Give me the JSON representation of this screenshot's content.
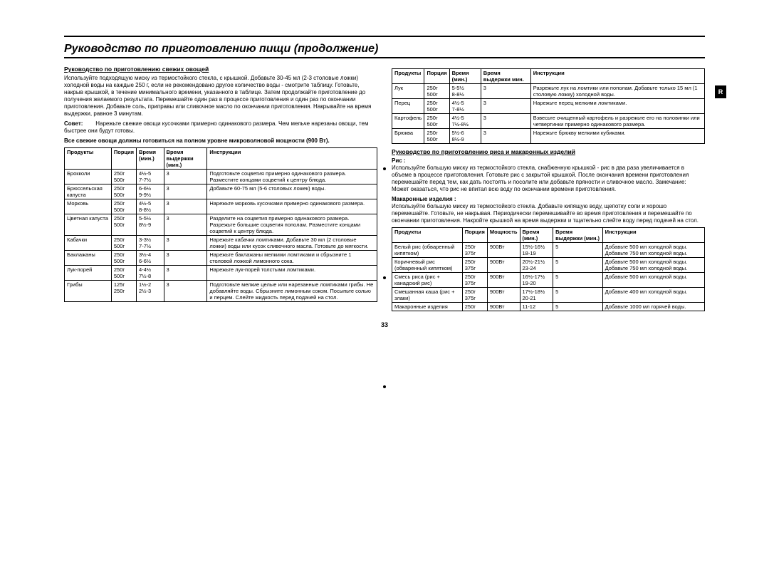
{
  "pageTitle": "Руководство по приготовлению пищи (продолжение)",
  "tabLabel": "R",
  "pageNumber": "33",
  "left": {
    "heading1": "Руководство по приготовлению свежих овощей",
    "para1": "Используйте подходящую миску из термостойкого стекла, с крышкой. Добавьте 30-45 мл (2-3 столовые ложки) холодной воды на каждые 250 г, если не рекомендовано другое количество воды - смотрите таблицу. Готовьте, накрыв крышкой, в течение минимального времени, указанного в таблице. Затем продолжайте приготовление до получения желаемого результата. Перемешайте один раз в процессе приготовления и один раз по окончании приготовления. Добавьте соль, приправы или сливочное масло по окончании приготовления. Накрывайте на время выдержки, равное 3 минутам.",
    "tipLabel": "Совет:",
    "tip": "Нарежьте свежие овощи кусочками примерно одинакового размера. Чем мельче нарезаны овощи, тем быстрее они будут готовы.",
    "boldNote": "Все свежие овощи должны готовиться на полном уровне микроволновой мощности (900 Вт).",
    "table1": {
      "headers": [
        "Продукты",
        "Порция",
        "Время (мин.)",
        "Время выдержки (мин.)",
        "Инструкции"
      ],
      "rows": [
        [
          "Брокколи",
          "250г\n500г",
          "4½-5\n7-7½",
          "3",
          "Подготовьте соцветия примерно одинакового размера. Разместите концами соцветий к центру блюда."
        ],
        [
          "Брюссельская капуста",
          "250г\n500г",
          "6-6½\n9-9½",
          "3",
          "Добавьте 60-75 мл (5-6 столовых ложек) воды."
        ],
        [
          "Морковь",
          "250г\n500г",
          "4½-5\n8-8½",
          "3",
          "Нарежьте морковь кусочками примерно одинакового размера."
        ],
        [
          "Цветная капуста",
          "250г\n500г",
          "5-5½\n8½-9",
          "3",
          "Разделите на соцветия примерно одинакового размера. Разрежьте большие соцветия пополам. Разместите концами соцветий к центру блюда."
        ],
        [
          "Кабачки",
          "250г\n500г",
          "3-3½\n7-7½",
          "3",
          "Нарежьте кабачки ломтиками. Добавьте 30 мл (2 столовые ложки) воды или кусок сливочного масла. Готовьте до мягкости."
        ],
        [
          "Баклажаны",
          "250г\n500г",
          "3½-4\n6-6½",
          "3",
          "Нарежьте баклажаны мелкими ломтиками и сбрызните 1 столовой ложкой лимонного сока."
        ],
        [
          "Лук-порей",
          "250г\n500г",
          "4-4½\n7½-8",
          "3",
          "Нарежьте лук-порей толстыми ломтиками."
        ],
        [
          "Грибы",
          "125г\n250г",
          "1½-2\n2½-3",
          "3",
          "Подготовьте мелкие целые или нарезанные ломтиками грибы. Не добавляйте воды. Сбрызните лимонным соком. Посыпьте солью и перцем. Слейте жидкость перед подачей на стол."
        ]
      ]
    }
  },
  "right": {
    "table2": {
      "headers": [
        "Продукты",
        "Порция",
        "Время (мин.)",
        "Время выдержки мин.",
        "Инструкции"
      ],
      "rows": [
        [
          "Лук",
          "250г\n500г",
          "5-5½\n8-8½",
          "3",
          "Разрежьте лук на ломтики или пополам. Добавьте только 15 мл (1 столовую ложку) холодной воды."
        ],
        [
          "Перец",
          "250г\n500г",
          "4½-5\n7-8½",
          "3",
          "Нарежьте перец мелкими ломтиками."
        ],
        [
          "Картофель",
          "250г\n500г",
          "4½-5\n7½-8½",
          "3",
          "Взвесьте очищенный картофель и разрежьте его на половинки или четвертинки примерно одинакового размера."
        ],
        [
          "Брюква",
          "250г\n500г",
          "5½-6\n8½-9",
          "3",
          "Нарежьте брюкву мелкими кубиками."
        ]
      ]
    },
    "heading2": "Руководство по приготовлению риса и макаронных изделий",
    "riceLabel": "Рис :",
    "ricePara": "Используйте большую миску из термостойкого стекла, снабженную крышкой - рис в два раза увеличивается в объеме в процессе приготовления. Готовьте рис с закрытой крышкой. После окончания времени приготовления перемешайте перед тем, как дать постоять и посолите или добавьте пряности и сливочное масло. Замечание: Может оказаться, что рис не впитал всю воду по окончании времени приготовления.",
    "pastaLabel": "Макаронные изделия :",
    "pastaPara": "Используйте большую миску из термостойкого стекла. Добавьте кипящую воду, щепотку соли и хорошо перемешайте. Готовьте, не накрывая. Периодически перемешивайте во время приготовления и перемешайте по окончании приготовления. Накройте крышкой на время выдержки и тщательно слейте воду перед подачей на стол.",
    "table3": {
      "headers": [
        "Продукты",
        "Порция",
        "Мощность",
        "Время (мин.)",
        "Время выдержки (мин.)",
        "Инструкции"
      ],
      "rows": [
        [
          "Белый рис (обваренный кипятком)",
          "250г\n375г",
          "900Вт",
          "15½-16½\n18-19",
          "5",
          "Добавьте 500 мл холодной воды. Добавьте 750 мл холодной воды."
        ],
        [
          "Коричневый рис (обваренный кипятком)",
          "250г\n375г",
          "900Вт",
          "20½-21½\n23-24",
          "5",
          "Добавьте 500 мл холодной воды. Добавьте 750 мл холодной воды."
        ],
        [
          "Смесь риса (рис + канадский рис)",
          "250г\n375г",
          "900Вт",
          "16½-17½\n19-20",
          "5",
          "Добавьте 500 мл холодной воды."
        ],
        [
          "Смешанная каша (рис + злаки)",
          "250г\n375г",
          "900Вт",
          "17½-18½\n20-21",
          "5",
          "Добавьте 400 мл холодной воды."
        ],
        [
          "Макаронные изделия",
          "250г",
          "900Вт",
          "11-12",
          "5",
          "Добавьте 1000 мл горячей воды."
        ]
      ]
    }
  }
}
